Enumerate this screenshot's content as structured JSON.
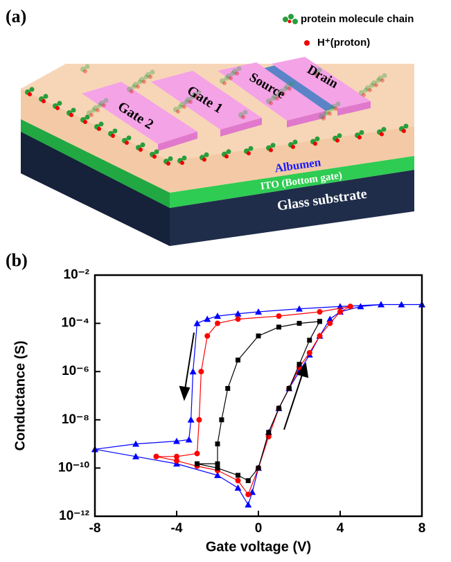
{
  "panel_a": {
    "label": "(a)",
    "legend": {
      "protein": "protein molecule chain",
      "proton": "H⁺(proton)"
    },
    "labels": {
      "gate2": "Gate 2",
      "gate1": "Gate 1",
      "source": "Source",
      "drain": "Drain",
      "albumen": "Albumen",
      "ito": "ITO (Bottom gate)",
      "glass": "Glass substrate"
    }
  },
  "chart_data": {
    "type": "line",
    "panel_label": "(b)",
    "xlabel": "Gate voltage (V)",
    "ylabel": "Conductance (S)",
    "xlim": [
      -8,
      8
    ],
    "xticks": [
      -8,
      -4,
      0,
      4,
      8
    ],
    "ylim": [
      1e-12,
      0.01
    ],
    "log_y": true,
    "yticks": [
      {
        "value": 1e-12,
        "label": "10⁻¹²"
      },
      {
        "value": 1e-10,
        "label": "10⁻¹⁰"
      },
      {
        "value": 1e-08,
        "label": "10⁻⁸"
      },
      {
        "value": 1e-06,
        "label": "10⁻⁶"
      },
      {
        "value": 0.0001,
        "label": "10⁻⁴"
      },
      {
        "value": 0.01,
        "label": "10⁻²"
      }
    ],
    "series": [
      {
        "color": "#0000ff",
        "marker": "triangle",
        "x": [
          -8,
          -6,
          -4,
          -2,
          -1,
          -0.5,
          -0.3,
          0,
          0.5,
          1,
          1.5,
          2,
          2.5,
          3,
          3.5,
          4,
          5,
          6,
          7,
          8,
          8,
          6,
          4,
          2,
          0,
          -1,
          -2,
          -2.5,
          -3,
          -3.2,
          -3.3,
          -3.4,
          -4,
          -6,
          -8
        ],
        "values": [
          6e-10,
          3e-10,
          1.5e-10,
          5e-11,
          1.5e-11,
          3e-12,
          1e-11,
          1e-10,
          3e-09,
          3e-08,
          2e-07,
          1e-06,
          5e-06,
          3e-05,
          0.00015,
          0.0003,
          0.0005,
          0.0006,
          0.0006,
          0.0006,
          0.0006,
          0.0006,
          0.0005,
          0.0004,
          0.0003,
          0.00025,
          0.0002,
          0.00015,
          0.0001,
          1e-06,
          1e-08,
          1.5e-09,
          1.3e-09,
          1e-09,
          6e-10
        ]
      },
      {
        "color": "#ff0000",
        "marker": "circle",
        "x": [
          -5,
          -4,
          -3,
          -2,
          -1,
          -0.5,
          0,
          0.5,
          1,
          1.5,
          2,
          2.5,
          3,
          3.5,
          4,
          4.5,
          4.5,
          3,
          1,
          -1,
          -2,
          -2.5,
          -2.8,
          -2.9,
          -3,
          -4,
          -5
        ],
        "values": [
          3e-10,
          2e-10,
          1.2e-10,
          8e-11,
          3e-11,
          8e-12,
          1e-10,
          2e-09,
          3e-08,
          2e-07,
          1.5e-06,
          6e-06,
          3e-05,
          0.0001,
          0.0003,
          0.0005,
          0.0005,
          0.0003,
          0.0002,
          0.00015,
          0.0001,
          3e-05,
          1e-06,
          1e-08,
          4e-10,
          3e-10,
          3e-10
        ]
      },
      {
        "color": "#000000",
        "marker": "square",
        "x": [
          -3,
          -2,
          -1,
          -0.5,
          0,
          0.5,
          1,
          1.5,
          2,
          2.5,
          3,
          3,
          2,
          1,
          0,
          -1,
          -1.5,
          -1.8,
          -2,
          -2,
          -3
        ],
        "values": [
          1.5e-10,
          1e-10,
          5e-11,
          3e-11,
          1e-10,
          3e-09,
          3e-08,
          2e-07,
          2e-06,
          2e-05,
          0.00012,
          0.00012,
          0.0001,
          7e-05,
          3e-05,
          3e-06,
          2e-07,
          1e-08,
          1e-09,
          1.5e-10,
          1.5e-10
        ]
      }
    ]
  }
}
